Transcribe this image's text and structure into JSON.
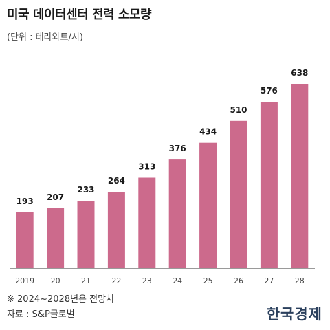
{
  "chart_data": {
    "type": "bar",
    "title": "미국 데이터센터 전력 소모량",
    "unit_label": "(단위 : 테라와트/시)",
    "categories": [
      "2019",
      "20",
      "21",
      "22",
      "23",
      "24",
      "25",
      "26",
      "27",
      "28"
    ],
    "values": [
      193,
      207,
      233,
      264,
      313,
      376,
      434,
      510,
      576,
      638
    ],
    "data_labels": [
      "193",
      "207",
      "233",
      "264",
      "313",
      "376",
      "434",
      "510",
      "576",
      "638"
    ],
    "ylim": [
      0,
      638
    ],
    "grid": false,
    "bar_color": "#cc6a8c"
  },
  "footnote": "※ 2024~2028년은 전망치",
  "source": "자료 : S&P글로벌",
  "logo": "한국경제"
}
